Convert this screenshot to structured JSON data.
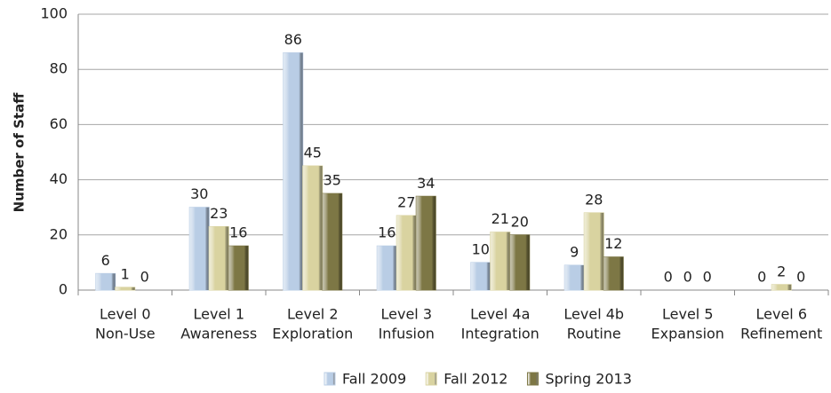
{
  "chart_data": {
    "type": "bar",
    "y_label": "Number of Staff",
    "categories": [
      [
        "Level 0",
        "Non-Use"
      ],
      [
        "Level 1",
        "Awareness"
      ],
      [
        "Level 2",
        "Exploration"
      ],
      [
        "Level 3",
        "Infusion"
      ],
      [
        "Level 4a",
        "Integration"
      ],
      [
        "Level 4b",
        "Routine"
      ],
      [
        "Level 5",
        "Expansion"
      ],
      [
        "Level 6",
        "Refinement"
      ]
    ],
    "series": [
      {
        "name": "Fall 2009",
        "color": "#b9cde5",
        "values": [
          6,
          30,
          86,
          16,
          10,
          9,
          0,
          0
        ]
      },
      {
        "name": "Fall 2012",
        "color": "#d9d3a0",
        "values": [
          1,
          23,
          45,
          27,
          21,
          28,
          0,
          2
        ]
      },
      {
        "name": "Spring 2013",
        "color": "#7d7745",
        "values": [
          0,
          16,
          35,
          34,
          20,
          12,
          0,
          0
        ]
      }
    ],
    "ylim": [
      0,
      100
    ],
    "yticks": [
      0,
      20,
      40,
      60,
      80,
      100
    ],
    "grid": true,
    "legend": "bottom"
  }
}
